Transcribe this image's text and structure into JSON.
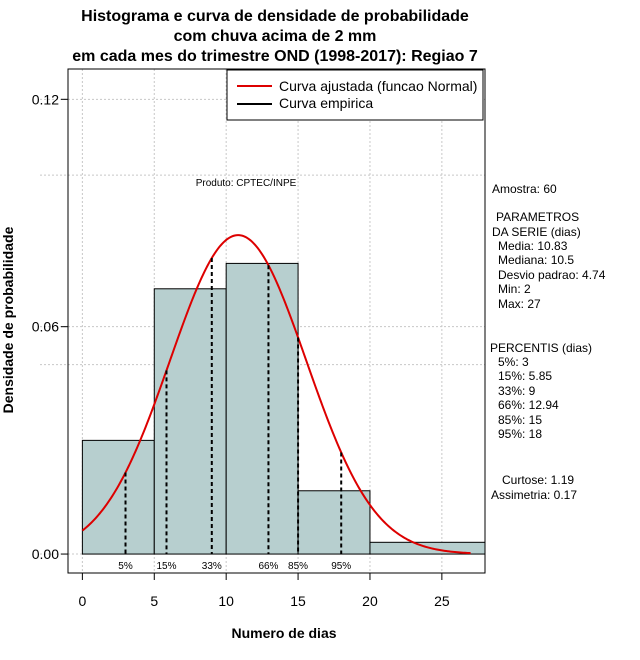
{
  "chart_data": {
    "type": "bar",
    "title": [
      "Histograma e curva de densidade de probabilidade",
      "com chuva acima de 2 mm",
      "em cada mes do trimestre OND (1998-2017): Regiao 7"
    ],
    "xlabel": "Numero de dias",
    "ylabel": "Densidade de probabilidade",
    "xlim": [
      -1,
      28
    ],
    "ylim": [
      -0.005,
      0.128
    ],
    "xticks": [
      0,
      5,
      10,
      15,
      20,
      25
    ],
    "yticks": [
      0.0,
      0.06,
      0.12
    ],
    "ytick_labels": [
      "0.00",
      "0.06",
      "0.12"
    ],
    "grid_x": [
      0,
      5,
      10,
      15,
      20,
      25
    ],
    "grid_y": [
      0.0,
      0.05,
      0.06,
      0.1,
      0.12
    ],
    "bins": [
      {
        "from": 0,
        "to": 5,
        "density": 0.03
      },
      {
        "from": 5,
        "to": 10,
        "density": 0.07
      },
      {
        "from": 10,
        "to": 15,
        "density": 0.0767
      },
      {
        "from": 15,
        "to": 20,
        "density": 0.0167
      },
      {
        "from": 20,
        "to": 28,
        "density": 0.0031
      }
    ],
    "normal_fit": {
      "mean": 10.83,
      "sd": 4.74,
      "from": 0,
      "to": 27
    },
    "percentiles": [
      {
        "label": "5%",
        "x": 3
      },
      {
        "label": "15%",
        "x": 5.85
      },
      {
        "label": "33%",
        "x": 9
      },
      {
        "label": "66%",
        "x": 12.94
      },
      {
        "label": "85%",
        "x": 15
      },
      {
        "label": "95%",
        "x": 18
      }
    ],
    "legend": [
      {
        "label": "Curva ajustada (funcao Normal)",
        "color": "#dd0000"
      },
      {
        "label": "Curva empirica",
        "color": "#000000"
      }
    ],
    "legend_position": "top-right",
    "annotation": "Produto: CPTEC/INPE",
    "bar_color": "#b7cfcf",
    "curve_color": "#dd0000"
  },
  "side_panel": {
    "amostra": "Amostra: 60",
    "param_title_1": "PARAMETROS",
    "param_title_2": "DA SERIE (dias)",
    "params": [
      "Media: 10.83",
      "Mediana: 10.5",
      "Desvio padrao: 4.74",
      "Min: 2",
      "Max: 27"
    ],
    "perc_title": "PERCENTIS (dias)",
    "percs": [
      "5%: 3",
      "15%: 5.85",
      "33%: 9",
      "66%: 12.94",
      "85%: 15",
      "95%: 18"
    ],
    "curtose": "Curtose: 1.19",
    "assimetria": "Assimetria: 0.17"
  }
}
